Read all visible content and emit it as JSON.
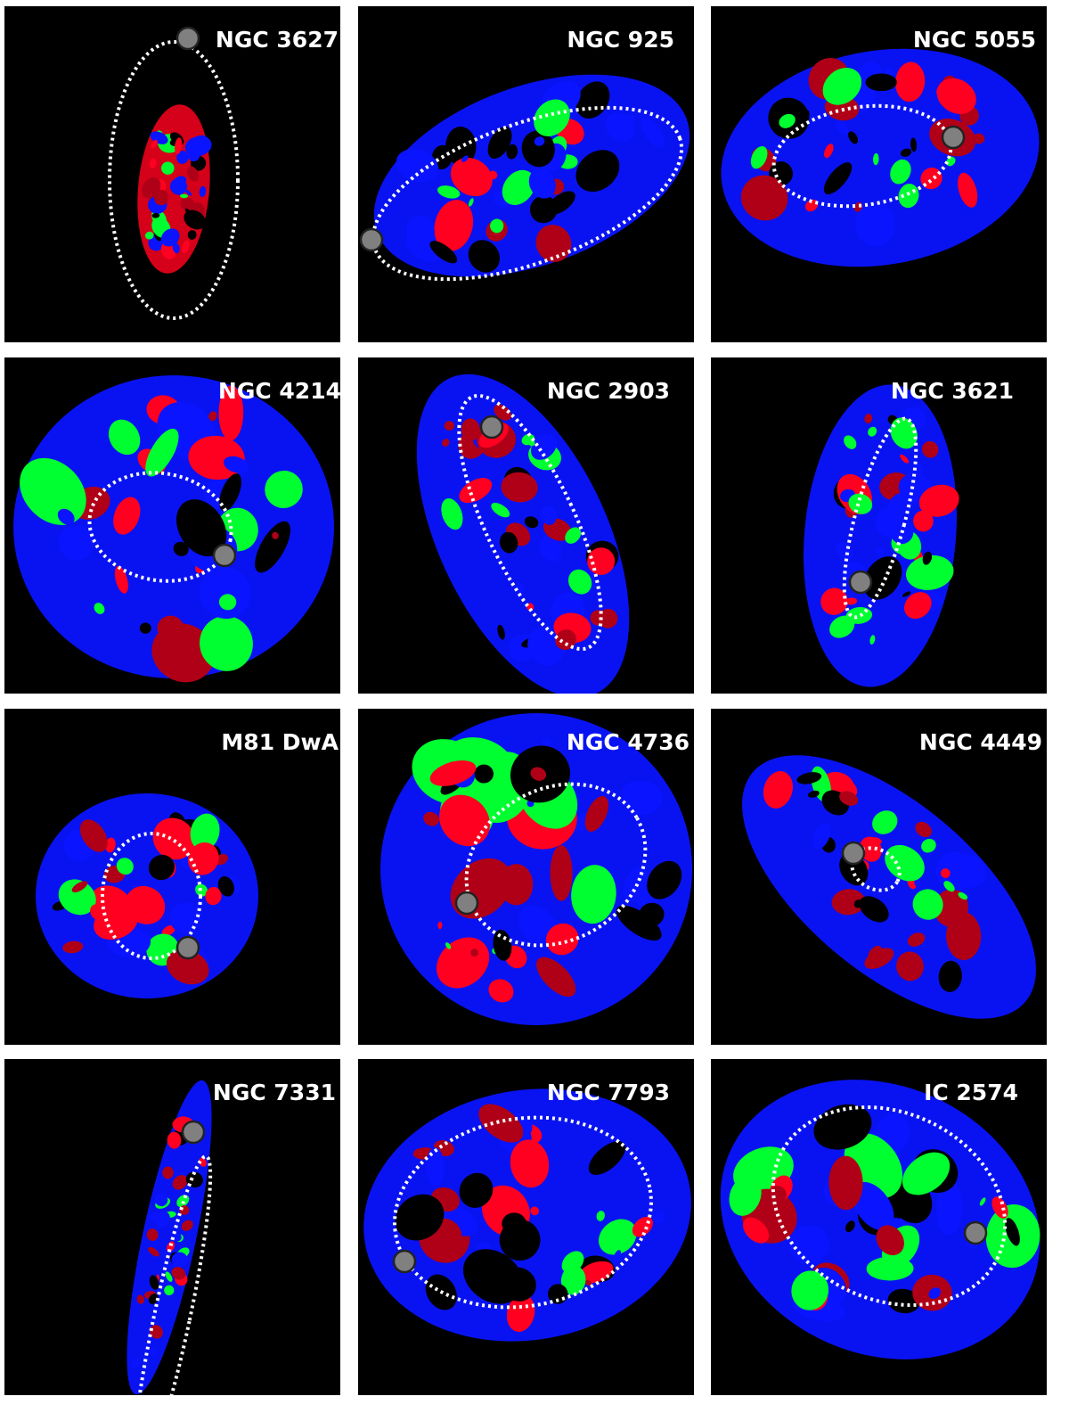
{
  "figure": {
    "panels": [
      {
        "label": "NGC 3627"
      },
      {
        "label": "NGC 925"
      },
      {
        "label": "NGC 5055"
      },
      {
        "label": "NGC 4214"
      },
      {
        "label": "NGC 2903"
      },
      {
        "label": "NGC 3621"
      },
      {
        "label": "M81 DwA"
      },
      {
        "label": "NGC 4736"
      },
      {
        "label": "NGC 4449"
      },
      {
        "label": "NGC 7331"
      },
      {
        "label": "NGC 7793"
      },
      {
        "label": "IC 2574"
      }
    ]
  }
}
